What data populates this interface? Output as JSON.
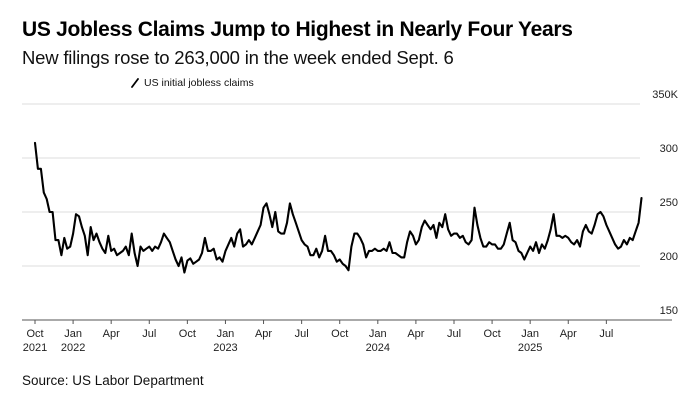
{
  "header": {
    "title": "US Jobless Claims Jump to Highest in Nearly Four Years",
    "subtitle": "New filings rose to 263,000 in the week ended Sept. 6"
  },
  "footer": {
    "source": "Source: US Labor Department"
  },
  "colors": {
    "line": "#000000",
    "grid": "#dddddd",
    "axis": "#555555"
  },
  "chart_data": {
    "type": "line",
    "title": "US Jobless Claims Jump to Highest in Nearly Four Years",
    "subtitle": "New filings rose to 263,000 in the week ended Sept. 6",
    "xlabel": "",
    "ylabel": "",
    "y_unit_suffix": "K",
    "ylim": [
      150,
      350
    ],
    "yticks": [
      {
        "value": 350,
        "label": "350K"
      },
      {
        "value": 300,
        "label": "300"
      },
      {
        "value": 250,
        "label": "250"
      },
      {
        "value": 200,
        "label": "200"
      },
      {
        "value": 150,
        "label": "150"
      }
    ],
    "grid": true,
    "y_axis_side": "right",
    "legend_position": "top-left",
    "x_start_week_offset": 0,
    "xticks": [
      {
        "week": 0,
        "label": "Oct",
        "sub": "2021"
      },
      {
        "week": 13,
        "label": "Jan",
        "sub": "2022"
      },
      {
        "week": 26,
        "label": "Apr",
        "sub": ""
      },
      {
        "week": 39,
        "label": "Jul",
        "sub": ""
      },
      {
        "week": 52,
        "label": "Oct",
        "sub": ""
      },
      {
        "week": 65,
        "label": "Jan",
        "sub": "2023"
      },
      {
        "week": 78,
        "label": "Apr",
        "sub": ""
      },
      {
        "week": 91,
        "label": "Jul",
        "sub": ""
      },
      {
        "week": 104,
        "label": "Oct",
        "sub": ""
      },
      {
        "week": 117,
        "label": "Jan",
        "sub": "2024"
      },
      {
        "week": 130,
        "label": "Apr",
        "sub": ""
      },
      {
        "week": 143,
        "label": "Jul",
        "sub": ""
      },
      {
        "week": 156,
        "label": "Oct",
        "sub": ""
      },
      {
        "week": 169,
        "label": "Jan",
        "sub": "2025"
      },
      {
        "week": 182,
        "label": "Apr",
        "sub": ""
      },
      {
        "week": 195,
        "label": "Jul",
        "sub": ""
      }
    ],
    "x_axis_end_week": 216,
    "series": [
      {
        "name": "US initial jobless claims",
        "values": [
          314,
          290,
          290,
          268,
          262,
          250,
          250,
          224,
          224,
          210,
          226,
          216,
          218,
          230,
          248,
          246,
          236,
          228,
          210,
          236,
          224,
          230,
          222,
          216,
          212,
          228,
          214,
          216,
          210,
          212,
          214,
          218,
          210,
          230,
          212,
          200,
          218,
          214,
          216,
          218,
          214,
          218,
          216,
          222,
          230,
          226,
          222,
          214,
          206,
          200,
          208,
          194,
          205,
          207,
          202,
          204,
          206,
          212,
          226,
          214,
          214,
          216,
          206,
          208,
          204,
          214,
          220,
          226,
          218,
          230,
          234,
          218,
          220,
          224,
          220,
          226,
          232,
          238,
          254,
          258,
          248,
          236,
          250,
          232,
          230,
          230,
          240,
          258,
          248,
          240,
          232,
          224,
          220,
          218,
          210,
          210,
          216,
          208,
          214,
          228,
          214,
          214,
          210,
          204,
          206,
          202,
          200,
          196,
          218,
          230,
          230,
          226,
          220,
          208,
          214,
          214,
          216,
          214,
          214,
          216,
          214,
          222,
          212,
          212,
          210,
          208,
          208,
          222,
          232,
          228,
          220,
          224,
          236,
          242,
          238,
          234,
          238,
          226,
          240,
          236,
          248,
          234,
          228,
          230,
          230,
          226,
          228,
          222,
          220,
          224,
          254,
          238,
          226,
          218,
          218,
          222,
          220,
          220,
          216,
          216,
          220,
          230,
          240,
          224,
          222,
          214,
          212,
          206,
          212,
          218,
          214,
          222,
          212,
          220,
          216,
          224,
          234,
          248,
          228,
          228,
          226,
          228,
          226,
          222,
          220,
          224,
          218,
          232,
          238,
          232,
          230,
          238,
          248,
          250,
          246,
          238,
          232,
          226,
          220,
          216,
          218,
          224,
          220,
          226,
          224,
          232,
          240,
          263
        ]
      }
    ]
  }
}
